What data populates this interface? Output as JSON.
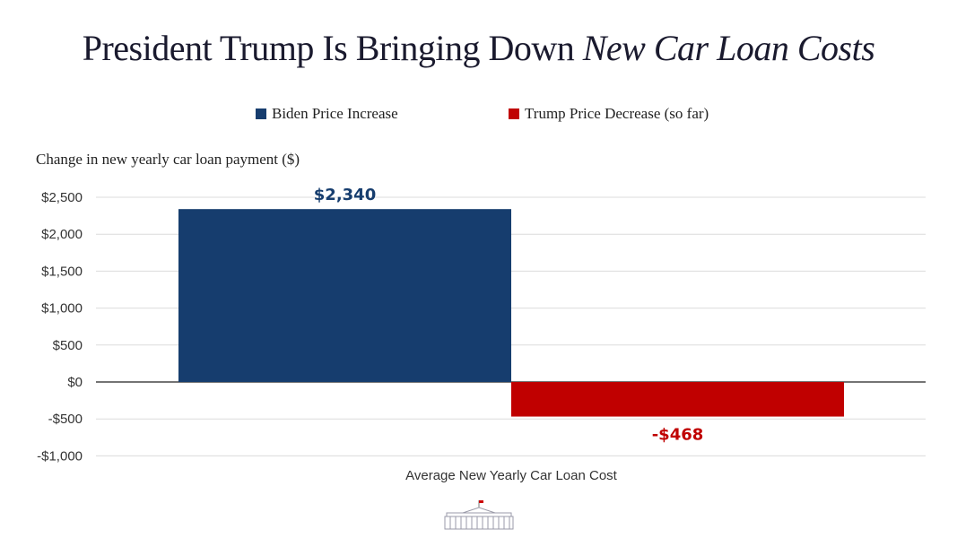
{
  "title": {
    "main": "President Trump Is Bringing Down ",
    "emph": "New Car Loan Costs"
  },
  "chart_data": {
    "type": "bar",
    "title": "President Trump Is Bringing Down New Car Loan Costs",
    "ylabel": "Change in new yearly car loan payment ($)",
    "xlabel": "",
    "categories": [
      "Average New Yearly Car Loan Cost"
    ],
    "series": [
      {
        "name": "Biden Price Increase",
        "values": [
          2340
        ],
        "label": "$2,340",
        "color": "#163d6e"
      },
      {
        "name": "Trump Price Decrease (so far)",
        "values": [
          -468
        ],
        "label": "-$468",
        "color": "#c00000"
      }
    ],
    "ylim": [
      -1000,
      2500
    ],
    "yticks": [
      2500,
      2000,
      1500,
      1000,
      500,
      0,
      -500,
      -1000
    ],
    "ytick_labels": [
      "$2,500",
      "$2,000",
      "$1,500",
      "$1,000",
      "$500",
      "$0",
      "-$500",
      "-$1,000"
    ],
    "grid": true,
    "legend": "top-center"
  },
  "logo": "white-house-logo"
}
